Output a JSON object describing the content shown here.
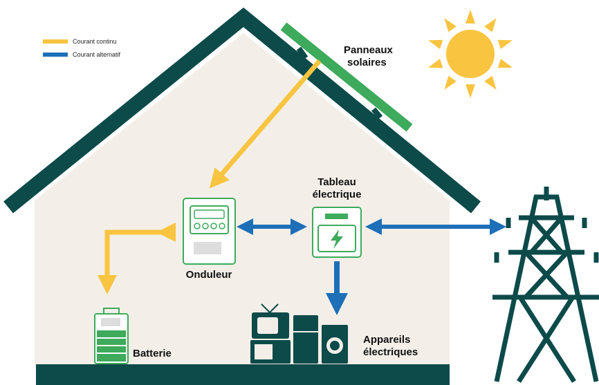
{
  "legend": {
    "items": [
      "Courant continu",
      "Courant alternatif"
    ]
  },
  "labels": {
    "panels": [
      "Panneaux",
      "solaires"
    ],
    "board": [
      "Tableau",
      "électrique"
    ],
    "inverter": "Onduleur",
    "battery": "Batterie",
    "appliances": [
      "Appareils",
      "électriques"
    ]
  }
}
